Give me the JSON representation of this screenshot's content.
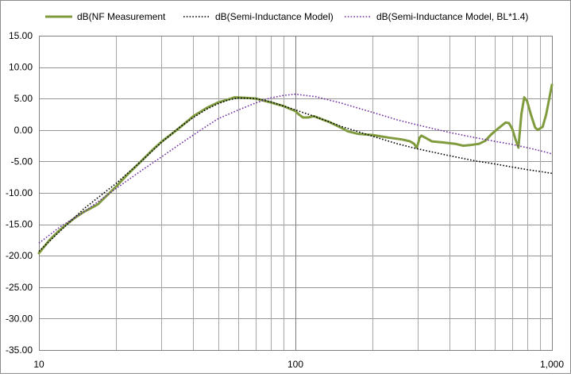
{
  "chart_data": {
    "type": "line",
    "title": "",
    "xlabel": "",
    "ylabel": "",
    "x_scale": "log",
    "xlim": [
      10,
      1000
    ],
    "ylim": [
      -35,
      15
    ],
    "y_tick_step": 5,
    "grid": true,
    "legend_position": "top",
    "x_tick_labels": [
      {
        "value": 10,
        "label": "10"
      },
      {
        "value": 100,
        "label": "100"
      },
      {
        "value": 1000,
        "label": "1,000"
      }
    ],
    "y_tick_labels": [
      {
        "value": 15,
        "label": "15.00"
      },
      {
        "value": 10,
        "label": "10.00"
      },
      {
        "value": 5,
        "label": "5.00"
      },
      {
        "value": 0,
        "label": "0.00"
      },
      {
        "value": -5,
        "label": "-5.00"
      },
      {
        "value": -10,
        "label": "-10.00"
      },
      {
        "value": -15,
        "label": "-15.00"
      },
      {
        "value": -20,
        "label": "-20.00"
      },
      {
        "value": -25,
        "label": "-25.00"
      },
      {
        "value": -30,
        "label": "-30.00"
      },
      {
        "value": -35,
        "label": "-35.00"
      }
    ],
    "series": [
      {
        "name": "dB(NF Measurement",
        "color": "#7f9b3e",
        "style": "solid",
        "points": [
          [
            10,
            -19.6
          ],
          [
            11,
            -17.5
          ],
          [
            12,
            -16.0
          ],
          [
            13,
            -14.8
          ],
          [
            14,
            -13.8
          ],
          [
            15,
            -13.0
          ],
          [
            16,
            -12.4
          ],
          [
            17,
            -11.8
          ],
          [
            18,
            -10.8
          ],
          [
            20,
            -9.0
          ],
          [
            22,
            -7.2
          ],
          [
            25,
            -5.0
          ],
          [
            28,
            -3.0
          ],
          [
            30,
            -1.9
          ],
          [
            35,
            0.2
          ],
          [
            40,
            2.2
          ],
          [
            45,
            3.5
          ],
          [
            50,
            4.4
          ],
          [
            55,
            4.9
          ],
          [
            58,
            5.2
          ],
          [
            65,
            5.1
          ],
          [
            70,
            5.0
          ],
          [
            80,
            4.4
          ],
          [
            90,
            3.8
          ],
          [
            100,
            3.0
          ],
          [
            103,
            2.5
          ],
          [
            107,
            2.0
          ],
          [
            112,
            2.0
          ],
          [
            118,
            2.2
          ],
          [
            125,
            1.8
          ],
          [
            135,
            1.3
          ],
          [
            150,
            0.4
          ],
          [
            160,
            -0.2
          ],
          [
            175,
            -0.6
          ],
          [
            200,
            -0.8
          ],
          [
            230,
            -1.2
          ],
          [
            260,
            -1.5
          ],
          [
            280,
            -1.8
          ],
          [
            290,
            -2.2
          ],
          [
            297,
            -2.8
          ],
          [
            300,
            -2.3
          ],
          [
            305,
            -1.2
          ],
          [
            310,
            -0.9
          ],
          [
            320,
            -1.2
          ],
          [
            340,
            -1.8
          ],
          [
            380,
            -2.0
          ],
          [
            420,
            -2.2
          ],
          [
            450,
            -2.5
          ],
          [
            480,
            -2.4
          ],
          [
            520,
            -2.2
          ],
          [
            550,
            -1.7
          ],
          [
            580,
            -0.7
          ],
          [
            620,
            0.3
          ],
          [
            660,
            1.2
          ],
          [
            680,
            1.1
          ],
          [
            700,
            0.2
          ],
          [
            720,
            -1.4
          ],
          [
            740,
            -2.8
          ],
          [
            760,
            2.5
          ],
          [
            780,
            5.2
          ],
          [
            800,
            4.6
          ],
          [
            830,
            2.3
          ],
          [
            860,
            0.4
          ],
          [
            880,
            0.0
          ],
          [
            920,
            0.5
          ],
          [
            950,
            2.5
          ],
          [
            1000,
            7.2
          ]
        ]
      },
      {
        "name": "dB(Semi-Inductance Model)",
        "color": "#000000",
        "style": "dotted",
        "points": [
          [
            10,
            -19.3
          ],
          [
            12,
            -16.2
          ],
          [
            15,
            -12.5
          ],
          [
            20,
            -8.5
          ],
          [
            25,
            -5.0
          ],
          [
            30,
            -2.0
          ],
          [
            35,
            0.3
          ],
          [
            40,
            2.0
          ],
          [
            45,
            3.3
          ],
          [
            50,
            4.2
          ],
          [
            55,
            4.8
          ],
          [
            60,
            5.1
          ],
          [
            70,
            5.0
          ],
          [
            80,
            4.5
          ],
          [
            90,
            3.8
          ],
          [
            100,
            3.2
          ],
          [
            120,
            2.1
          ],
          [
            150,
            0.6
          ],
          [
            200,
            -1.0
          ],
          [
            250,
            -2.2
          ],
          [
            300,
            -3.0
          ],
          [
            400,
            -4.1
          ],
          [
            500,
            -4.9
          ],
          [
            600,
            -5.4
          ],
          [
            700,
            -5.9
          ],
          [
            800,
            -6.3
          ],
          [
            900,
            -6.6
          ],
          [
            1000,
            -6.9
          ]
        ]
      },
      {
        "name": "dB(Semi-Inductance Model, BL*1.4)",
        "color": "#7030a0",
        "style": "dotted",
        "points": [
          [
            10,
            -18.0
          ],
          [
            12,
            -15.5
          ],
          [
            15,
            -13.0
          ],
          [
            20,
            -9.3
          ],
          [
            25,
            -6.5
          ],
          [
            30,
            -4.3
          ],
          [
            35,
            -2.4
          ],
          [
            40,
            -0.8
          ],
          [
            45,
            0.6
          ],
          [
            50,
            1.8
          ],
          [
            60,
            3.2
          ],
          [
            70,
            4.3
          ],
          [
            80,
            5.1
          ],
          [
            90,
            5.5
          ],
          [
            100,
            5.7
          ],
          [
            120,
            5.3
          ],
          [
            150,
            4.3
          ],
          [
            200,
            2.8
          ],
          [
            250,
            1.6
          ],
          [
            300,
            0.8
          ],
          [
            400,
            -0.4
          ],
          [
            500,
            -1.2
          ],
          [
            600,
            -1.8
          ],
          [
            700,
            -2.3
          ],
          [
            800,
            -2.8
          ],
          [
            900,
            -3.3
          ],
          [
            1000,
            -3.8
          ]
        ]
      }
    ]
  }
}
